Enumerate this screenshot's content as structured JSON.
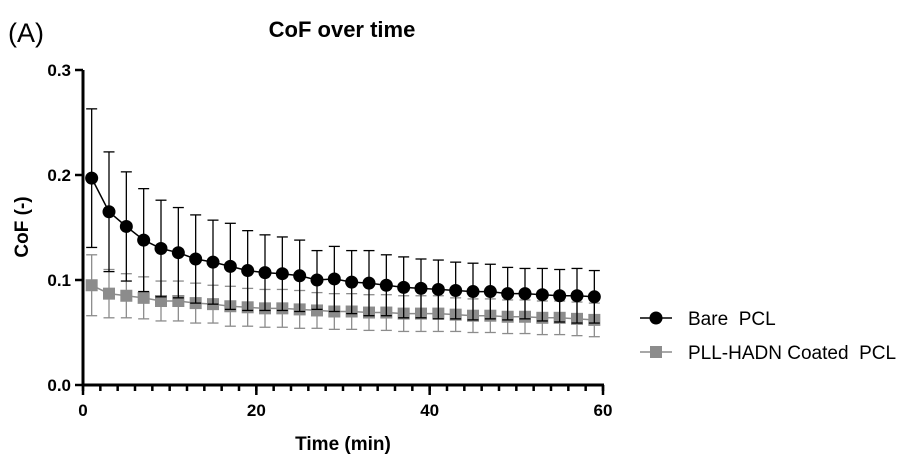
{
  "panel_label": "(A)",
  "chart_data": {
    "type": "line",
    "title": "CoF over time",
    "xlabel": "Time (min)",
    "ylabel": "CoF (-)",
    "xlim": [
      0,
      60
    ],
    "ylim": [
      0,
      0.3
    ],
    "xticks": [
      "0",
      "20",
      "40",
      "60"
    ],
    "yticks": [
      "0.0",
      "0.1",
      "0.2",
      "0.3"
    ],
    "x_minor_step": 2,
    "grid": false,
    "legend_position": "right",
    "x": [
      1,
      3,
      5,
      7,
      9,
      11,
      13,
      15,
      17,
      19,
      21,
      23,
      25,
      27,
      29,
      31,
      33,
      35,
      37,
      39,
      41,
      43,
      45,
      47,
      49,
      51,
      53,
      55,
      57,
      59
    ],
    "series": [
      {
        "name": "Bare  PCL",
        "color": "#000000",
        "marker": "circle",
        "values": [
          0.197,
          0.165,
          0.151,
          0.138,
          0.13,
          0.126,
          0.12,
          0.117,
          0.113,
          0.109,
          0.107,
          0.106,
          0.104,
          0.1,
          0.101,
          0.098,
          0.097,
          0.095,
          0.093,
          0.092,
          0.091,
          0.09,
          0.089,
          0.089,
          0.087,
          0.087,
          0.086,
          0.085,
          0.085,
          0.084
        ],
        "errors": [
          0.066,
          0.057,
          0.052,
          0.049,
          0.046,
          0.043,
          0.042,
          0.04,
          0.041,
          0.038,
          0.036,
          0.035,
          0.034,
          0.028,
          0.031,
          0.03,
          0.031,
          0.029,
          0.029,
          0.028,
          0.028,
          0.027,
          0.027,
          0.026,
          0.025,
          0.024,
          0.025,
          0.025,
          0.026,
          0.025
        ]
      },
      {
        "name": "PLL-HADN Coated  PCL",
        "color": "#8c8c8c",
        "marker": "square",
        "values": [
          0.095,
          0.087,
          0.085,
          0.083,
          0.08,
          0.08,
          0.078,
          0.077,
          0.075,
          0.074,
          0.073,
          0.073,
          0.072,
          0.071,
          0.07,
          0.07,
          0.069,
          0.069,
          0.068,
          0.068,
          0.068,
          0.067,
          0.066,
          0.066,
          0.065,
          0.065,
          0.064,
          0.064,
          0.063,
          0.062
        ],
        "errors": [
          0.029,
          0.023,
          0.021,
          0.02,
          0.019,
          0.019,
          0.019,
          0.018,
          0.019,
          0.018,
          0.018,
          0.018,
          0.018,
          0.017,
          0.017,
          0.017,
          0.017,
          0.017,
          0.017,
          0.017,
          0.017,
          0.016,
          0.016,
          0.016,
          0.016,
          0.016,
          0.016,
          0.016,
          0.016,
          0.016
        ]
      }
    ]
  }
}
